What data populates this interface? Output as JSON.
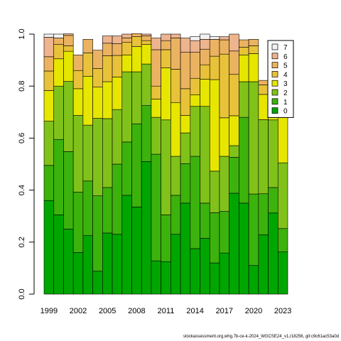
{
  "chart_data": {
    "type": "bar",
    "stacked": true,
    "categories": [
      "1999",
      "2000",
      "2001",
      "2002",
      "2003",
      "2004",
      "2005",
      "2006",
      "2007",
      "2008",
      "2009",
      "2010",
      "2011",
      "2012",
      "2013",
      "2014",
      "2015",
      "2016",
      "2017",
      "2018",
      "2019",
      "2020",
      "2021",
      "2022",
      "2023"
    ],
    "x_tick_labels": [
      "1999",
      "2002",
      "2005",
      "2008",
      "2011",
      "2014",
      "2017",
      "2020",
      "2023"
    ],
    "ylim": [
      0,
      1
    ],
    "y_ticks": [
      "0.0",
      "0.2",
      "0.4",
      "0.6",
      "0.8",
      "1.0"
    ],
    "legend": {
      "position": "top-right",
      "entries": [
        "7",
        "6",
        "5",
        "4",
        "3",
        "2",
        "1",
        "0"
      ]
    },
    "colors": {
      "0": "#00a600",
      "1": "#3cb20d",
      "2": "#80c21a",
      "3": "#e6e600",
      "4": "#e8c23a",
      "5": "#ebb361",
      "6": "#edb48e",
      "7": "#f2f2f2"
    },
    "series": [
      {
        "name": "0",
        "values": [
          0.36,
          0.305,
          0.25,
          0.16,
          0.225,
          0.088,
          0.235,
          0.23,
          0.38,
          0.335,
          0.51,
          0.128,
          0.125,
          0.23,
          0.35,
          0.175,
          0.215,
          0.12,
          0.158,
          0.388,
          0.35,
          0.11,
          0.228,
          0.312,
          0.162
        ]
      },
      {
        "name": "1",
        "values": [
          0.135,
          0.29,
          0.298,
          0.232,
          0.21,
          0.29,
          0.175,
          0.27,
          0.205,
          0.32,
          0.215,
          0.41,
          0.18,
          0.15,
          0.152,
          0.355,
          0.135,
          0.193,
          0.16,
          0.138,
          0.33,
          0.275,
          0.158,
          0.098,
          0.09
        ]
      },
      {
        "name": "2",
        "values": [
          0.17,
          0.205,
          0.27,
          0.295,
          0.215,
          0.298,
          0.265,
          0.21,
          0.27,
          0.2,
          0.16,
          0.142,
          0.365,
          0.15,
          0.118,
          0.192,
          0.372,
          0.16,
          0.212,
          0.045,
          0.137,
          0.432,
          0.285,
          0.26,
          0.253
        ]
      },
      {
        "name": "3",
        "values": [
          0.118,
          0.105,
          0.116,
          0.103,
          0.188,
          0.12,
          0.142,
          0.125,
          0.065,
          0.097,
          0.075,
          0.07,
          0.2,
          0.207,
          0.067,
          0.045,
          0.105,
          0.352,
          0.148,
          0.115,
          0.103,
          0.108,
          0.097,
          0.132,
          0.252
        ]
      },
      {
        "name": "4",
        "values": [
          0.075,
          0.055,
          0.021,
          0.07,
          0.09,
          0.072,
          0.1,
          0.083,
          0.048,
          0.038,
          0.015,
          0.05,
          0.07,
          0.128,
          0.103,
          0.063,
          0.055,
          0.09,
          0.245,
          0.159,
          0.03,
          0.03,
          0.037,
          0.043,
          0.078
        ]
      },
      {
        "name": "5",
        "values": [
          0.055,
          0.025,
          0.04,
          0.06,
          0.052,
          0.07,
          0.048,
          0.045,
          0.017,
          0.012,
          0.018,
          0.14,
          0.035,
          0.12,
          0.14,
          0.1,
          0.06,
          0.065,
          0.055,
          0.09,
          0.028,
          0.025,
          0.017,
          0.06,
          0.015
        ]
      },
      {
        "name": "6",
        "values": [
          0.075,
          0.0,
          0.006,
          0.0,
          0.0,
          0.0,
          0.028,
          0.03,
          0.015,
          0.0,
          0.007,
          0.045,
          0.025,
          0.015,
          0.055,
          0.045,
          0.038,
          0.0,
          0.012,
          0.065,
          0.0,
          0.0,
          0.0,
          0.0,
          0.0
        ]
      },
      {
        "name": "7",
        "values": [
          0.012,
          0.015,
          0.0,
          0.0,
          0.0,
          0.0,
          0.0,
          0.0,
          0.0,
          0.0,
          0.0,
          0.0,
          0.0,
          0.0,
          0.0,
          0.015,
          0.02,
          0.01,
          0.0,
          0.0,
          0.0,
          0.0,
          0.0,
          0.0,
          0.0
        ]
      }
    ]
  },
  "footer_text": "stockassessment.org,whg.7b-ce-k-2024_WGCSE24_v1,r18256, git:c9c61ac53a0d"
}
